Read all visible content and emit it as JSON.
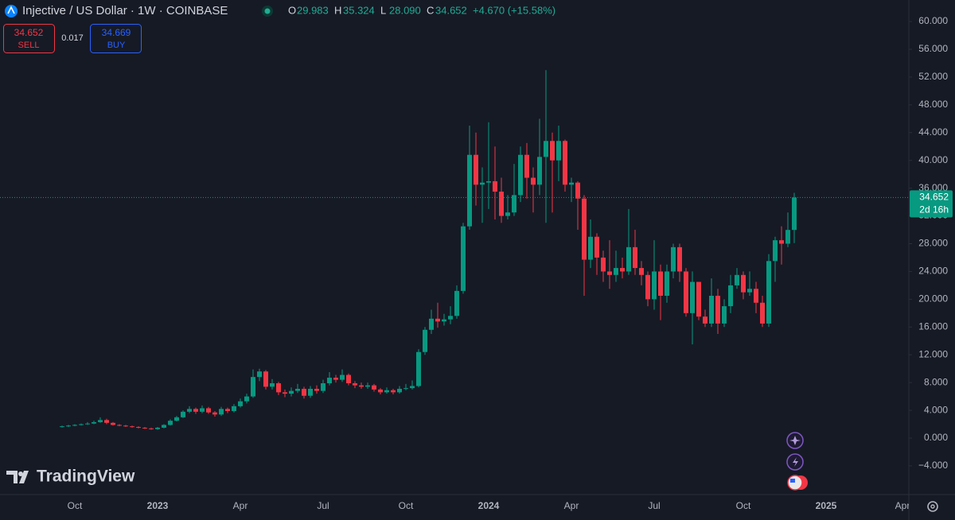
{
  "header": {
    "title": "Injective / US Dollar · 1W · COINBASE",
    "ohlc": [
      {
        "label": "O",
        "value": "29.983"
      },
      {
        "label": "H",
        "value": "35.324"
      },
      {
        "label": "L",
        "value": "28.090"
      },
      {
        "label": "C",
        "value": "34.652"
      }
    ],
    "change": "+4.670 (+15.58%)"
  },
  "trade": {
    "sell_price": "34.652",
    "sell_label": "SELL",
    "spread": "0.017",
    "buy_price": "34.669",
    "buy_label": "BUY"
  },
  "branding": "TradingView",
  "chart_data": {
    "type": "candlestick",
    "categories": [
      null,
      null,
      "Oct",
      null,
      null,
      null,
      null,
      null,
      null,
      null,
      null,
      null,
      null,
      null,
      null,
      "2023",
      null,
      null,
      null,
      null,
      null,
      null,
      null,
      null,
      null,
      null,
      null,
      null,
      "Apr",
      null,
      null,
      null,
      null,
      null,
      null,
      null,
      null,
      null,
      null,
      null,
      null,
      "Jul",
      null,
      null,
      null,
      null,
      null,
      null,
      null,
      null,
      null,
      null,
      null,
      null,
      "Oct",
      null,
      null,
      null,
      null,
      null,
      null,
      null,
      null,
      null,
      null,
      null,
      null,
      "2024",
      null,
      null,
      null,
      null,
      null,
      null,
      null,
      null,
      null,
      null,
      null,
      null,
      "Apr",
      null,
      null,
      null,
      null,
      null,
      null,
      null,
      null,
      null,
      null,
      null,
      null,
      "Jul",
      null,
      null,
      null,
      null,
      null,
      null,
      null,
      null,
      null,
      null,
      null,
      null,
      null,
      "Oct",
      null,
      null,
      null,
      null,
      null,
      null,
      null,
      null,
      null,
      null,
      null,
      null,
      "2025",
      null,
      null,
      null,
      null,
      null,
      null,
      null,
      null,
      null,
      null,
      null,
      "Apr"
    ],
    "open": [
      1.6,
      1.7,
      1.8,
      1.9,
      2.0,
      2.1,
      2.3,
      2.6,
      2.2,
      1.9,
      1.8,
      1.7,
      1.6,
      1.5,
      1.4,
      1.3,
      1.5,
      1.9,
      2.5,
      3.0,
      3.8,
      4.2,
      3.8,
      4.3,
      3.7,
      3.4,
      4.2,
      3.9,
      4.6,
      5.3,
      6.0,
      8.8,
      9.6,
      7.4,
      7.9,
      6.6,
      6.4,
      6.8,
      7.1,
      6.1,
      7.1,
      6.8,
      7.9,
      8.7,
      8.4,
      9.1,
      7.9,
      7.6,
      7.4,
      7.6,
      7.0,
      6.6,
      6.9,
      6.6,
      7.1,
      7.2,
      7.5,
      12.4,
      15.6,
      17.2,
      16.8,
      17.1,
      17.6,
      21.2,
      30.5,
      40.8,
      36.5,
      36.8,
      37.0,
      35.5,
      32.0,
      32.5,
      35.0,
      40.8,
      37.5,
      36.5,
      40.5,
      42.8,
      40.0,
      42.8,
      36.5,
      36.8,
      34.5,
      25.7,
      29.0,
      26.0,
      24.0,
      23.5,
      24.5,
      24.0,
      27.5,
      24.5,
      23.5,
      20.0,
      24.0,
      20.5,
      24.0,
      27.5,
      24.0,
      18.0,
      22.5,
      17.5,
      16.5,
      20.5,
      16.5,
      19.0,
      22.0,
      23.5,
      21.0,
      21.5,
      19.5,
      16.5,
      25.5,
      28.5,
      28.0,
      29.983,
      null,
      null,
      null,
      null,
      null,
      null,
      null,
      null,
      null,
      null,
      null,
      null,
      null,
      null,
      null,
      null,
      null
    ],
    "high": [
      1.8,
      1.9,
      2.0,
      2.1,
      2.3,
      2.5,
      3.0,
      2.8,
      2.3,
      2.0,
      1.9,
      1.8,
      1.7,
      1.6,
      1.5,
      1.6,
      2.0,
      2.7,
      3.2,
      4.0,
      4.6,
      4.4,
      4.7,
      4.5,
      3.9,
      4.5,
      4.4,
      4.9,
      5.7,
      6.4,
      9.9,
      10.0,
      9.8,
      8.5,
      8.1,
      7.0,
      7.3,
      7.8,
      7.4,
      7.5,
      7.6,
      8.4,
      9.5,
      9.1,
      9.9,
      9.3,
      8.2,
      8.0,
      8.0,
      7.8,
      7.2,
      7.3,
      7.1,
      7.5,
      7.8,
      8.3,
      12.8,
      16.0,
      18.5,
      19.5,
      17.9,
      19.0,
      22.0,
      31.0,
      45.0,
      44.0,
      39.0,
      45.5,
      42.0,
      37.5,
      35.0,
      39.5,
      42.0,
      42.5,
      39.0,
      46.0,
      53.0,
      44.0,
      45.0,
      43.0,
      37.5,
      37.0,
      35.0,
      31.5,
      29.5,
      27.0,
      28.5,
      27.0,
      26.0,
      33.0,
      30.0,
      25.5,
      24.0,
      28.5,
      25.0,
      25.0,
      28.0,
      28.0,
      24.5,
      24.0,
      22.5,
      18.5,
      23.0,
      21.5,
      20.0,
      23.5,
      24.5,
      24.0,
      24.0,
      22.5,
      20.5,
      26.5,
      29.0,
      30.5,
      32.5,
      35.324,
      null,
      null,
      null,
      null,
      null,
      null,
      null,
      null,
      null,
      null,
      null,
      null,
      null,
      null,
      null,
      null,
      null
    ],
    "low": [
      1.5,
      1.6,
      1.7,
      1.8,
      1.9,
      2.0,
      2.2,
      2.0,
      1.8,
      1.7,
      1.6,
      1.5,
      1.4,
      1.3,
      1.2,
      1.2,
      1.4,
      1.8,
      2.4,
      2.9,
      3.6,
      3.5,
      3.6,
      3.5,
      3.1,
      3.2,
      3.6,
      3.7,
      4.4,
      5.0,
      5.8,
      8.2,
      7.0,
      7.0,
      6.2,
      5.9,
      6.0,
      6.5,
      5.7,
      5.8,
      6.4,
      6.5,
      7.6,
      8.0,
      8.1,
      7.6,
      7.2,
      7.1,
      7.1,
      6.7,
      6.3,
      6.4,
      6.3,
      6.4,
      6.9,
      7.0,
      7.3,
      12.0,
      15.0,
      15.9,
      16.2,
      16.4,
      17.2,
      20.8,
      30.0,
      33.5,
      31.0,
      33.0,
      31.5,
      31.0,
      31.5,
      32.0,
      34.0,
      34.5,
      32.5,
      35.0,
      31.0,
      32.5,
      37.0,
      35.5,
      34.0,
      30.0,
      20.5,
      24.5,
      23.5,
      22.5,
      21.5,
      22.5,
      23.0,
      23.5,
      23.5,
      22.0,
      19.0,
      18.5,
      17.0,
      19.5,
      23.0,
      22.5,
      17.5,
      13.5,
      17.0,
      16.0,
      16.0,
      15.0,
      16.0,
      18.0,
      21.5,
      20.0,
      20.5,
      18.0,
      16.0,
      16.0,
      22.5,
      25.0,
      27.5,
      28.09,
      null,
      null,
      null,
      null,
      null,
      null,
      null,
      null,
      null,
      null,
      null,
      null,
      null,
      null,
      null,
      null,
      null
    ],
    "close": [
      1.7,
      1.8,
      1.9,
      2.0,
      2.1,
      2.3,
      2.6,
      2.2,
      1.9,
      1.8,
      1.7,
      1.6,
      1.5,
      1.4,
      1.3,
      1.5,
      1.9,
      2.5,
      3.0,
      3.8,
      4.2,
      3.8,
      4.3,
      3.7,
      3.4,
      4.2,
      3.9,
      4.6,
      5.3,
      6.0,
      8.8,
      9.6,
      7.4,
      7.9,
      6.6,
      6.4,
      6.8,
      7.1,
      6.1,
      7.1,
      6.8,
      7.9,
      8.7,
      8.4,
      9.1,
      7.9,
      7.6,
      7.4,
      7.6,
      7.0,
      6.6,
      6.9,
      6.6,
      7.1,
      7.2,
      7.5,
      12.4,
      15.6,
      17.2,
      16.8,
      17.1,
      17.6,
      21.2,
      30.5,
      40.8,
      36.5,
      36.8,
      37.0,
      35.5,
      32.0,
      32.5,
      35.0,
      40.8,
      37.5,
      36.5,
      40.5,
      42.8,
      40.0,
      42.8,
      36.5,
      36.8,
      34.5,
      25.7,
      29.0,
      26.0,
      24.0,
      23.5,
      24.5,
      24.0,
      27.5,
      24.5,
      23.5,
      20.0,
      24.0,
      20.5,
      24.0,
      27.5,
      24.0,
      18.0,
      22.5,
      17.5,
      16.5,
      20.5,
      16.5,
      19.0,
      22.0,
      23.5,
      21.0,
      21.5,
      19.5,
      16.5,
      25.5,
      28.5,
      28.0,
      29.983,
      34.652,
      null,
      null,
      null,
      null,
      null,
      null,
      null,
      null,
      null,
      null,
      null,
      null,
      null,
      null,
      null,
      null,
      null
    ],
    "up_color": "#089981",
    "down_color": "#f23645",
    "ylim": [
      -7.9,
      63.1
    ],
    "yticks": [
      {
        "value": -4,
        "label": "−4.000"
      },
      {
        "value": 0,
        "label": "0.000"
      },
      {
        "value": 4,
        "label": "4.000"
      },
      {
        "value": 8,
        "label": "8.000"
      },
      {
        "value": 12,
        "label": "12.000"
      },
      {
        "value": 16,
        "label": "16.000"
      },
      {
        "value": 20,
        "label": "20.000"
      },
      {
        "value": 24,
        "label": "24.000"
      },
      {
        "value": 28,
        "label": "28.000"
      },
      {
        "value": 32,
        "label": "32.000"
      },
      {
        "value": 36,
        "label": "36.000"
      },
      {
        "value": 40,
        "label": "40.000"
      },
      {
        "value": 44,
        "label": "44.000"
      },
      {
        "value": 48,
        "label": "48.000"
      },
      {
        "value": 52,
        "label": "52.000"
      },
      {
        "value": 56,
        "label": "56.000"
      },
      {
        "value": 60,
        "label": "60.000"
      }
    ],
    "countdown": "2d 16h"
  }
}
